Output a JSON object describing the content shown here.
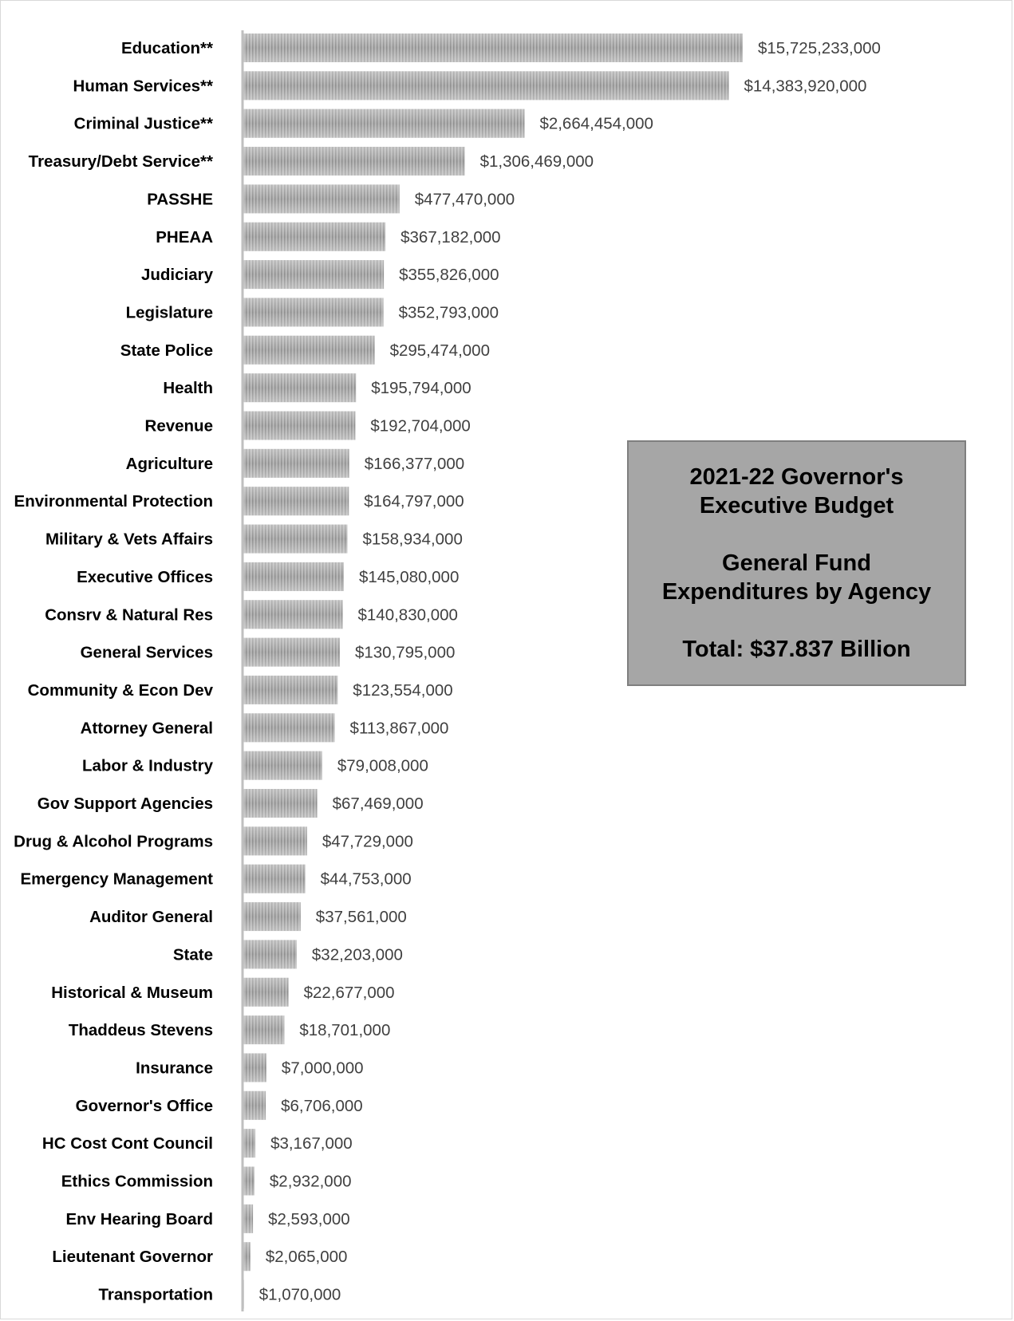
{
  "chart_data": {
    "type": "bar",
    "orientation": "horizontal",
    "categories": [
      "Education**",
      "Human Services**",
      "Criminal Justice**",
      "Treasury/Debt Service**",
      "PASSHE",
      "PHEAA",
      "Judiciary",
      "Legislature",
      "State Police",
      "Health",
      "Revenue",
      "Agriculture",
      "Environmental Protection",
      "Military & Vets Affairs",
      "Executive Offices",
      "Consrv & Natural Res",
      "General Services",
      "Community & Econ Dev",
      "Attorney General",
      "Labor & Industry",
      "Gov Support Agencies",
      "Drug & Alcohol Programs",
      "Emergency Management",
      "Auditor General",
      "State",
      "Historical & Museum",
      "Thaddeus Stevens",
      "Insurance",
      "Governor's Office",
      "HC Cost Cont Council",
      "Ethics Commission",
      "Env Hearing Board",
      "Lieutenant Governor",
      "Transportation"
    ],
    "values": [
      15725233000,
      14383920000,
      2664454000,
      1306469000,
      477470000,
      367182000,
      355826000,
      352793000,
      295474000,
      195794000,
      192704000,
      166377000,
      164797000,
      158934000,
      145080000,
      140830000,
      130795000,
      123554000,
      113867000,
      79008000,
      67469000,
      47729000,
      44753000,
      37561000,
      32203000,
      22677000,
      18701000,
      7000000,
      6706000,
      3167000,
      2932000,
      2593000,
      2065000,
      1070000
    ],
    "value_labels": [
      "$15,725,233,000",
      "$14,383,920,000",
      "$2,664,454,000",
      "$1,306,469,000",
      "$477,470,000",
      "$367,182,000",
      "$355,826,000",
      "$352,793,000",
      "$295,474,000",
      "$195,794,000",
      "$192,704,000",
      "$166,377,000",
      "$164,797,000",
      "$158,934,000",
      "$145,080,000",
      "$140,830,000",
      "$130,795,000",
      "$123,554,000",
      "$113,867,000",
      "$79,008,000",
      "$67,469,000",
      "$47,729,000",
      "$44,753,000",
      "$37,561,000",
      "$32,203,000",
      "$22,677,000",
      "$18,701,000",
      "$7,000,000",
      "$6,706,000",
      "$3,167,000",
      "$2,932,000",
      "$2,593,000",
      "$2,065,000",
      "$1,070,000"
    ],
    "scale": "nonlinear (bar lengths compressed)",
    "grid": false,
    "legend": "none",
    "bar_color": "#a6a6a6",
    "title_box": {
      "line1": "2021-22 Governor's",
      "line2": "Executive Budget",
      "line3": "General Fund",
      "line4": "Expenditures by Agency",
      "line5": "Total: $37.837 Billion"
    }
  }
}
